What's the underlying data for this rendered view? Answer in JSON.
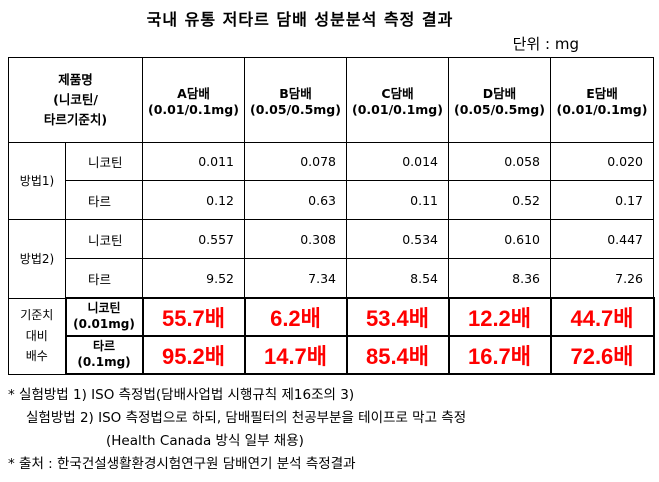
{
  "title": "국내 유통 저타르 담배 성분분석 측정 결과",
  "unit": "단위 : mg",
  "header": {
    "corner_lines": [
      "제품명",
      "(니코틴/",
      "타르기준치)"
    ],
    "columns": [
      {
        "name": "A담배",
        "sub": "(0.01/0.1mg)"
      },
      {
        "name": "B담배",
        "sub": "(0.05/0.5mg)"
      },
      {
        "name": "C담배",
        "sub": "(0.01/0.1mg)"
      },
      {
        "name": "D담배",
        "sub": "(0.05/0.5mg)"
      },
      {
        "name": "E담배",
        "sub": "(0.01/0.1mg)"
      }
    ]
  },
  "method1": {
    "label": "방법1)",
    "rows": [
      {
        "label": "니코틴",
        "values": [
          "0.011",
          "0.078",
          "0.014",
          "0.058",
          "0.020"
        ]
      },
      {
        "label": "타르",
        "values": [
          "0.12",
          "0.63",
          "0.11",
          "0.52",
          "0.17"
        ]
      }
    ]
  },
  "method2": {
    "label": "방법2)",
    "rows": [
      {
        "label": "니코틴",
        "values": [
          "0.557",
          "0.308",
          "0.534",
          "0.610",
          "0.447"
        ]
      },
      {
        "label": "타르",
        "values": [
          "9.52",
          "7.34",
          "8.54",
          "8.36",
          "7.26"
        ]
      }
    ]
  },
  "ratio": {
    "label_lines": [
      "기준치",
      "대비",
      "배수"
    ],
    "rows": [
      {
        "label_lines": [
          "니코틴",
          "(0.01mg)"
        ],
        "values": [
          "55.7배",
          "6.2배",
          "53.4배",
          "12.2배",
          "44.7배"
        ]
      },
      {
        "label_lines": [
          "타르",
          "(0.1mg)"
        ],
        "values": [
          "95.2배",
          "14.7배",
          "85.4배",
          "16.7배",
          "72.6배"
        ]
      }
    ]
  },
  "notes": {
    "line1": "* 실험방법 1) ISO 측정법(담배사업법 시행규칙 제16조의 3)",
    "line2": "실험방법 2) ISO 측정법으로 하되, 담배필터의 천공부분을 테이프로 막고 측정",
    "line3": "(Health Canada 방식 일부 채용)",
    "line4": "* 출처 : 한국건설생활환경시험연구원 담배연기 분석 측정결과"
  }
}
